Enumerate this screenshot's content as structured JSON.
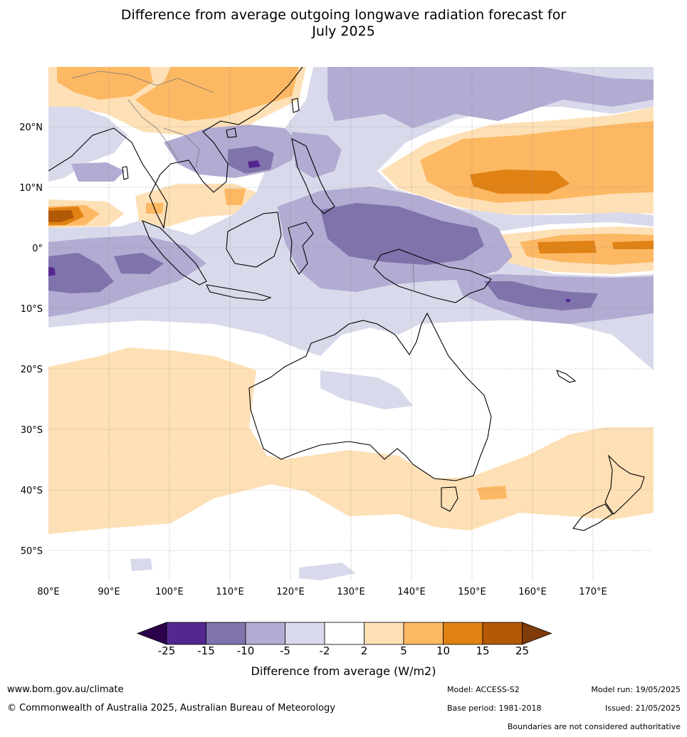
{
  "title_line1": "Difference from average outgoing longwave radiation forecast for",
  "title_line2": "July 2025",
  "map": {
    "lon_labels": [
      "80°E",
      "90°E",
      "100°E",
      "110°E",
      "120°E",
      "130°E",
      "140°E",
      "150°E",
      "160°E",
      "170°E"
    ],
    "lat_labels": [
      "20°N",
      "10°N",
      "0°",
      "10°S",
      "20°S",
      "30°S",
      "40°S",
      "50°S"
    ]
  },
  "colorbar": {
    "title": "Difference from average (W/m2)",
    "ticks": [
      "-25",
      "-15",
      "-10",
      "-5",
      "-2",
      "2",
      "5",
      "10",
      "15",
      "25"
    ],
    "bins": [
      {
        "range": "-25 to -15",
        "color": "#54278f"
      },
      {
        "range": "-15 to -10",
        "color": "#8073ac"
      },
      {
        "range": "-10 to -5",
        "color": "#b2abd2"
      },
      {
        "range": "-5 to -2",
        "color": "#d8daeb"
      },
      {
        "range": "-2 to 2",
        "color": "#ffffff"
      },
      {
        "range": "2 to 5",
        "color": "#fee0b6"
      },
      {
        "range": "5 to 10",
        "color": "#fdb863"
      },
      {
        "range": "10 to 15",
        "color": "#e08214"
      },
      {
        "range": "15 to 25",
        "color": "#b35806"
      }
    ],
    "low_extend_color": "#2d004b",
    "high_extend_color": "#7f3b08"
  },
  "footer": {
    "website": "www.bom.gov.au/climate",
    "copyright": "© Commonwealth of Australia 2025, Australian Bureau of Meteorology",
    "model": "Model: ACCESS-S2",
    "base_period": "Base period: 1981-2018",
    "model_run": "Model run: 19/05/2025",
    "issued": "Issued: 21/05/2025",
    "disclaimer": "Boundaries are not considered authoritative"
  }
}
